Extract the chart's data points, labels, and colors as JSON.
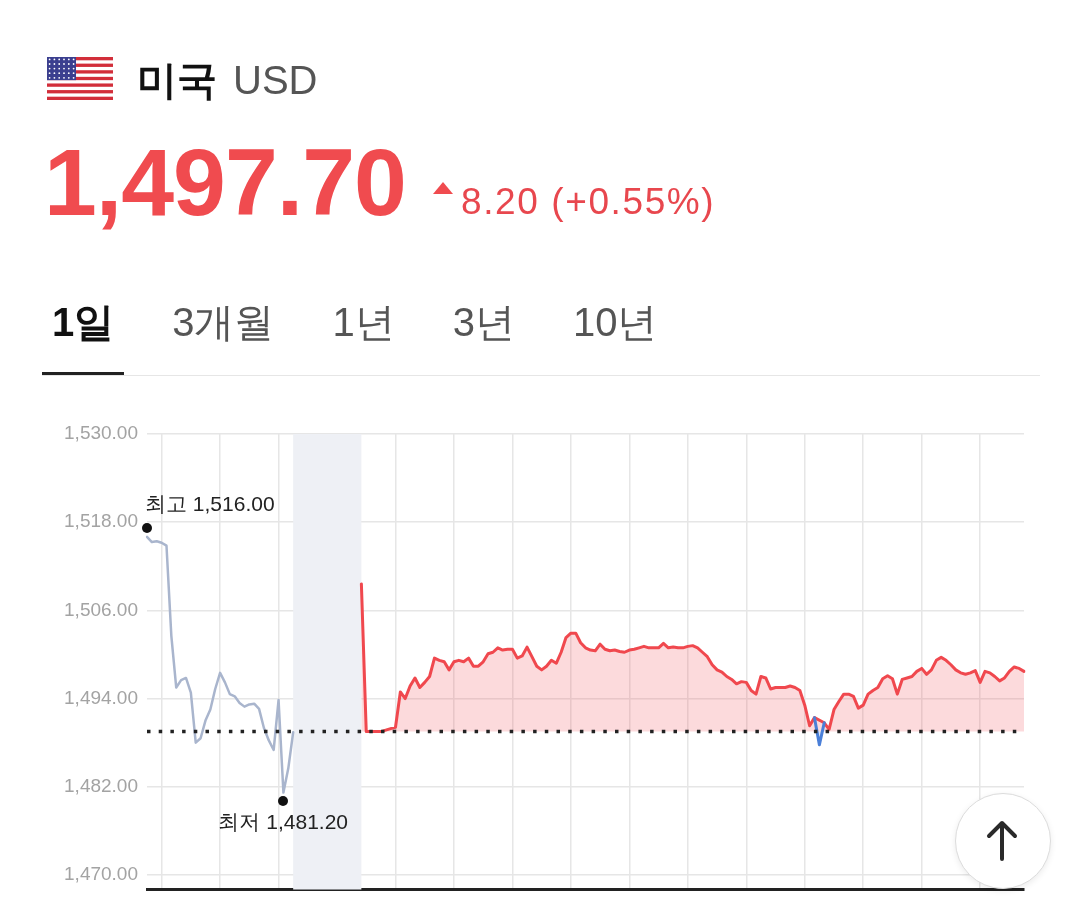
{
  "chart_data": {
    "type": "line",
    "title": "미국 USD",
    "subtitle": "1,497.70",
    "categories": [
      null,
      null,
      null,
      null,
      null,
      null,
      null,
      null,
      null,
      null,
      null,
      null,
      null,
      null,
      null,
      null,
      null,
      null,
      null,
      null,
      null,
      null,
      null,
      null,
      null,
      null,
      null,
      null,
      null,
      null,
      null,
      null,
      null,
      null,
      null,
      null,
      null,
      null,
      null,
      null,
      null,
      null,
      null,
      null,
      null,
      null,
      null,
      null,
      null,
      null,
      null,
      null,
      null,
      null,
      null,
      null,
      null,
      null,
      null,
      null,
      null,
      null,
      null,
      null,
      null,
      null,
      null,
      null,
      null,
      null,
      null,
      null,
      null,
      null,
      null,
      null,
      null,
      null,
      null,
      null,
      null,
      null,
      null,
      null,
      null,
      null,
      null,
      null,
      null,
      null,
      null,
      null,
      null,
      null,
      null,
      null,
      null,
      null,
      null,
      null,
      null,
      null,
      null,
      null,
      null,
      null,
      null,
      null,
      null,
      null,
      null,
      null,
      null,
      null,
      null,
      null,
      null,
      null,
      null,
      null,
      null,
      null,
      null,
      null,
      null,
      null,
      null,
      null,
      null,
      null,
      null,
      null,
      null,
      null,
      null,
      null,
      null,
      null,
      null,
      null,
      null,
      null,
      null,
      null,
      null,
      null,
      null,
      null,
      null,
      null,
      null,
      null,
      null,
      null,
      null,
      null,
      null,
      null,
      null,
      null,
      null,
      null,
      null,
      null,
      null,
      null,
      null,
      null,
      null,
      null,
      null,
      null,
      null,
      null,
      null,
      null,
      null,
      null,
      null,
      null,
      null
    ],
    "series": [
      {
        "type": "line",
        "color": "#a9b5cd",
        "values": [
          1516,
          1515.3,
          1515.4,
          1515.2,
          1514.8,
          1502.5,
          1495.5,
          1496.5,
          1496.8,
          1494.8,
          1488.0,
          1488.6,
          1491.0,
          1492.5,
          1495.3,
          1497.5,
          1496.2,
          1494.6,
          1494.3,
          1493.4,
          1492.9,
          1493.2,
          1493.3,
          1492.6,
          1490.0,
          1488.3,
          1487.0,
          1493.8,
          1481.2,
          1484.5,
          1489.4,
          null,
          null,
          null,
          null,
          null,
          null,
          null,
          null,
          null,
          null,
          null,
          null,
          null,
          null,
          null,
          null,
          null,
          null,
          null,
          null,
          null,
          null,
          null,
          null,
          null,
          null,
          null,
          null,
          null,
          null,
          null,
          null,
          null,
          null,
          null,
          null,
          null,
          null,
          null,
          null,
          null,
          null,
          null,
          null,
          null,
          null,
          null,
          null,
          null,
          null,
          null,
          null,
          null,
          null,
          null,
          null,
          null,
          null,
          null,
          null,
          null,
          null,
          null,
          null,
          null,
          null,
          null,
          null,
          null,
          null,
          null,
          null,
          null,
          null,
          null,
          null,
          null,
          null,
          null,
          null,
          null,
          null,
          null,
          null,
          null,
          null,
          null,
          null,
          null,
          null,
          null,
          null,
          null,
          null,
          null,
          null,
          null,
          null,
          null,
          null,
          null,
          null,
          null,
          null,
          null,
          null,
          null,
          null,
          null,
          null,
          null,
          null,
          null,
          null,
          null,
          null,
          null,
          null,
          null,
          null,
          null,
          null,
          null,
          null,
          null,
          null,
          null,
          null,
          null,
          null,
          null,
          null,
          null,
          null,
          null,
          null,
          null,
          null,
          null,
          null,
          null,
          null,
          null,
          null,
          null,
          null,
          null,
          null,
          null,
          null
        ]
      },
      {
        "type": "area",
        "color": "#f0484e",
        "values": [
          null,
          null,
          null,
          null,
          null,
          null,
          null,
          null,
          null,
          null,
          null,
          null,
          null,
          null,
          null,
          null,
          null,
          null,
          null,
          null,
          null,
          null,
          null,
          null,
          null,
          null,
          null,
          null,
          null,
          null,
          null,
          null,
          null,
          null,
          null,
          null,
          null,
          null,
          null,
          null,
          null,
          null,
          null,
          null,
          1509.6,
          1489.5,
          1489.5,
          1489.5,
          1489.5,
          1489.7,
          1489.9,
          1490.1,
          1494.9,
          1494.0,
          1495.7,
          1496.8,
          1495.5,
          1496.2,
          1497.0,
          1499.5,
          1499.2,
          1499.0,
          1497.9,
          1499.0,
          1499.2,
          1499.0,
          1499.5,
          1498.4,
          1498.4,
          1499.0,
          1500.1,
          1500.3,
          1500.9,
          1500.6,
          1500.7,
          1500.7,
          1499.5,
          1499.8,
          1501.0,
          1499.7,
          1498.4,
          1497.9,
          1498.4,
          1499.2,
          1498.8,
          1500.3,
          1502.3,
          1502.9,
          1502.9,
          1501.6,
          1500.9,
          1500.6,
          1500.5,
          1501.4,
          1500.7,
          1500.5,
          1500.6,
          1500.4,
          1500.3,
          1500.6,
          1500.7,
          1500.9,
          1501.1,
          1500.9,
          1500.9,
          1500.9,
          1501.5,
          1500.9,
          1501.0,
          1500.9,
          1500.9,
          1501.1,
          1501.2,
          1500.9,
          1500.3,
          1499.7,
          1498.6,
          1497.9,
          1497.6,
          1497.0,
          1496.6,
          1496.0,
          1496.3,
          1496.2,
          1495.1,
          1494.6,
          1497.0,
          1496.8,
          1495.3,
          1495.5,
          1495.5,
          1495.5,
          1495.7,
          1495.5,
          1495.1,
          1493.1,
          1490.3,
          1491.4,
          null,
          1490.7,
          1489.8,
          1492.5,
          1493.6,
          1494.6,
          1494.6,
          1494.3,
          1492.7,
          1493.1,
          1494.6,
          1495.1,
          1495.5,
          1496.7,
          1497.1,
          1496.7,
          1494.6,
          1496.6,
          1496.8,
          1497.0,
          1497.7,
          1498.1,
          1497.3,
          1497.9,
          1499.2,
          1499.6,
          1499.2,
          1498.6,
          1497.9,
          1497.5,
          1497.3,
          1497.5,
          1497.8,
          1496.2,
          1497.7,
          1497.5,
          1497.0,
          1496.4,
          1496.8,
          1497.7,
          1498.3,
          1498.1,
          1497.7
        ]
      },
      {
        "type": "area",
        "color": "#4a7fd8",
        "values": [
          null,
          null,
          null,
          null,
          null,
          null,
          null,
          null,
          null,
          null,
          null,
          null,
          null,
          null,
          null,
          null,
          null,
          null,
          null,
          null,
          null,
          null,
          null,
          null,
          null,
          null,
          null,
          null,
          null,
          null,
          null,
          null,
          null,
          null,
          null,
          null,
          null,
          null,
          null,
          null,
          null,
          null,
          null,
          null,
          null,
          null,
          null,
          null,
          null,
          null,
          null,
          null,
          null,
          null,
          null,
          null,
          null,
          null,
          null,
          null,
          null,
          null,
          null,
          null,
          null,
          null,
          null,
          null,
          null,
          null,
          null,
          null,
          null,
          null,
          null,
          null,
          null,
          null,
          null,
          null,
          null,
          null,
          null,
          null,
          null,
          null,
          null,
          null,
          null,
          null,
          null,
          null,
          null,
          null,
          null,
          null,
          null,
          null,
          null,
          null,
          null,
          null,
          null,
          null,
          null,
          null,
          null,
          null,
          null,
          null,
          null,
          null,
          null,
          null,
          null,
          null,
          null,
          null,
          null,
          null,
          null,
          null,
          null,
          null,
          null,
          null,
          null,
          null,
          null,
          null,
          null,
          null,
          null,
          null,
          null,
          null,
          null,
          1491.4,
          1487.7,
          1490.7,
          null,
          null,
          null,
          null,
          null,
          null,
          null,
          null,
          null,
          null,
          null,
          null,
          null,
          null,
          null,
          null,
          null,
          null,
          null,
          null,
          null,
          null,
          null,
          null,
          null,
          null,
          null,
          null,
          null,
          null,
          null,
          null,
          null,
          null,
          null,
          null,
          null,
          null,
          null,
          null,
          null
        ]
      }
    ],
    "ylim": [
      1468,
      1530
    ],
    "yticks": [
      {
        "value": 1470,
        "label": "1,470.00"
      },
      {
        "value": 1482,
        "label": "1,482.00"
      },
      {
        "value": 1494,
        "label": "1,494.00"
      },
      {
        "value": 1506,
        "label": "1,506.00"
      },
      {
        "value": 1518,
        "label": "1,518.00"
      },
      {
        "value": 1530,
        "label": "1,530.00"
      }
    ],
    "grid": true,
    "ref_lines": [
      {
        "axis": "y",
        "value": 1489.5,
        "color": "#222222",
        "line_style": "dotted"
      }
    ],
    "annotations": [
      "최고 1,516.00",
      "최저 1,481.20",
      "8.20 (+0.55%)",
      "1일",
      "3개월",
      "1년",
      "3년",
      "10년"
    ]
  }
}
